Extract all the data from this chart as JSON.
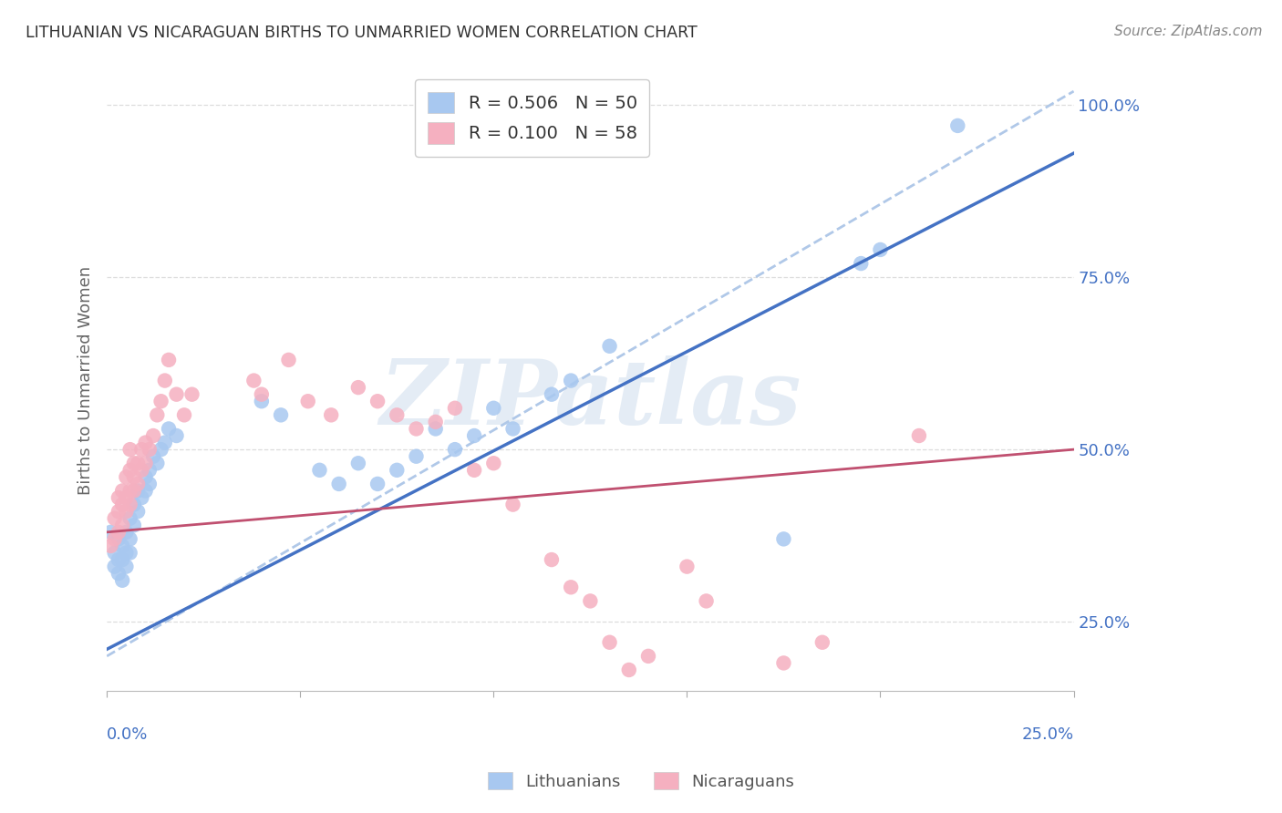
{
  "title": "LITHUANIAN VS NICARAGUAN BIRTHS TO UNMARRIED WOMEN CORRELATION CHART",
  "source": "Source: ZipAtlas.com",
  "ylabel": "Births to Unmarried Women",
  "ytick_labels": [
    "25.0%",
    "50.0%",
    "75.0%",
    "100.0%"
  ],
  "ytick_values": [
    0.25,
    0.5,
    0.75,
    1.0
  ],
  "xmin": 0.0,
  "xmax": 0.25,
  "ymin": 0.15,
  "ymax": 1.05,
  "blue_scatter": [
    [
      0.001,
      0.38
    ],
    [
      0.002,
      0.35
    ],
    [
      0.002,
      0.33
    ],
    [
      0.003,
      0.37
    ],
    [
      0.003,
      0.34
    ],
    [
      0.003,
      0.32
    ],
    [
      0.004,
      0.36
    ],
    [
      0.004,
      0.34
    ],
    [
      0.004,
      0.31
    ],
    [
      0.005,
      0.38
    ],
    [
      0.005,
      0.35
    ],
    [
      0.005,
      0.33
    ],
    [
      0.006,
      0.4
    ],
    [
      0.006,
      0.37
    ],
    [
      0.006,
      0.35
    ],
    [
      0.007,
      0.42
    ],
    [
      0.007,
      0.39
    ],
    [
      0.008,
      0.44
    ],
    [
      0.008,
      0.41
    ],
    [
      0.009,
      0.43
    ],
    [
      0.01,
      0.46
    ],
    [
      0.01,
      0.44
    ],
    [
      0.011,
      0.47
    ],
    [
      0.011,
      0.45
    ],
    [
      0.012,
      0.49
    ],
    [
      0.013,
      0.48
    ],
    [
      0.014,
      0.5
    ],
    [
      0.015,
      0.51
    ],
    [
      0.016,
      0.53
    ],
    [
      0.018,
      0.52
    ],
    [
      0.04,
      0.57
    ],
    [
      0.045,
      0.55
    ],
    [
      0.055,
      0.47
    ],
    [
      0.06,
      0.45
    ],
    [
      0.065,
      0.48
    ],
    [
      0.07,
      0.45
    ],
    [
      0.075,
      0.47
    ],
    [
      0.08,
      0.49
    ],
    [
      0.085,
      0.53
    ],
    [
      0.09,
      0.5
    ],
    [
      0.095,
      0.52
    ],
    [
      0.1,
      0.56
    ],
    [
      0.105,
      0.53
    ],
    [
      0.115,
      0.58
    ],
    [
      0.12,
      0.6
    ],
    [
      0.13,
      0.65
    ],
    [
      0.175,
      0.37
    ],
    [
      0.195,
      0.77
    ],
    [
      0.2,
      0.79
    ],
    [
      0.22,
      0.97
    ]
  ],
  "pink_scatter": [
    [
      0.001,
      0.36
    ],
    [
      0.002,
      0.37
    ],
    [
      0.002,
      0.4
    ],
    [
      0.003,
      0.38
    ],
    [
      0.003,
      0.41
    ],
    [
      0.003,
      0.43
    ],
    [
      0.004,
      0.39
    ],
    [
      0.004,
      0.42
    ],
    [
      0.004,
      0.44
    ],
    [
      0.005,
      0.41
    ],
    [
      0.005,
      0.43
    ],
    [
      0.005,
      0.46
    ],
    [
      0.006,
      0.42
    ],
    [
      0.006,
      0.44
    ],
    [
      0.006,
      0.47
    ],
    [
      0.006,
      0.5
    ],
    [
      0.007,
      0.44
    ],
    [
      0.007,
      0.46
    ],
    [
      0.007,
      0.48
    ],
    [
      0.008,
      0.45
    ],
    [
      0.008,
      0.48
    ],
    [
      0.009,
      0.47
    ],
    [
      0.009,
      0.5
    ],
    [
      0.01,
      0.48
    ],
    [
      0.01,
      0.51
    ],
    [
      0.011,
      0.5
    ],
    [
      0.012,
      0.52
    ],
    [
      0.013,
      0.55
    ],
    [
      0.014,
      0.57
    ],
    [
      0.015,
      0.6
    ],
    [
      0.016,
      0.63
    ],
    [
      0.018,
      0.58
    ],
    [
      0.02,
      0.55
    ],
    [
      0.022,
      0.58
    ],
    [
      0.038,
      0.6
    ],
    [
      0.04,
      0.58
    ],
    [
      0.047,
      0.63
    ],
    [
      0.052,
      0.57
    ],
    [
      0.058,
      0.55
    ],
    [
      0.065,
      0.59
    ],
    [
      0.07,
      0.57
    ],
    [
      0.075,
      0.55
    ],
    [
      0.08,
      0.53
    ],
    [
      0.085,
      0.54
    ],
    [
      0.09,
      0.56
    ],
    [
      0.095,
      0.47
    ],
    [
      0.1,
      0.48
    ],
    [
      0.105,
      0.42
    ],
    [
      0.115,
      0.34
    ],
    [
      0.12,
      0.3
    ],
    [
      0.125,
      0.28
    ],
    [
      0.13,
      0.22
    ],
    [
      0.135,
      0.18
    ],
    [
      0.14,
      0.2
    ],
    [
      0.15,
      0.33
    ],
    [
      0.155,
      0.28
    ],
    [
      0.175,
      0.19
    ],
    [
      0.185,
      0.22
    ],
    [
      0.21,
      0.52
    ]
  ],
  "blue_line": {
    "x0": 0.0,
    "y0": 0.21,
    "x1": 0.25,
    "y1": 0.93
  },
  "pink_line": {
    "x0": 0.0,
    "y0": 0.38,
    "x1": 0.25,
    "y1": 0.5
  },
  "dashed_line": {
    "x0": 0.0,
    "y0": 0.2,
    "x1": 0.25,
    "y1": 1.02
  },
  "blue_line_color": "#4472C4",
  "pink_line_color": "#C05070",
  "dashed_line_color": "#B0C8E8",
  "scatter_blue_color": "#A8C8F0",
  "scatter_pink_color": "#F5B0C0",
  "grid_color": "#DDDDDD",
  "title_color": "#333333",
  "axis_label_color": "#4472C4",
  "source_color": "#888888",
  "watermark_text": "ZIPatlas",
  "watermark_color": "#E4ECF5"
}
